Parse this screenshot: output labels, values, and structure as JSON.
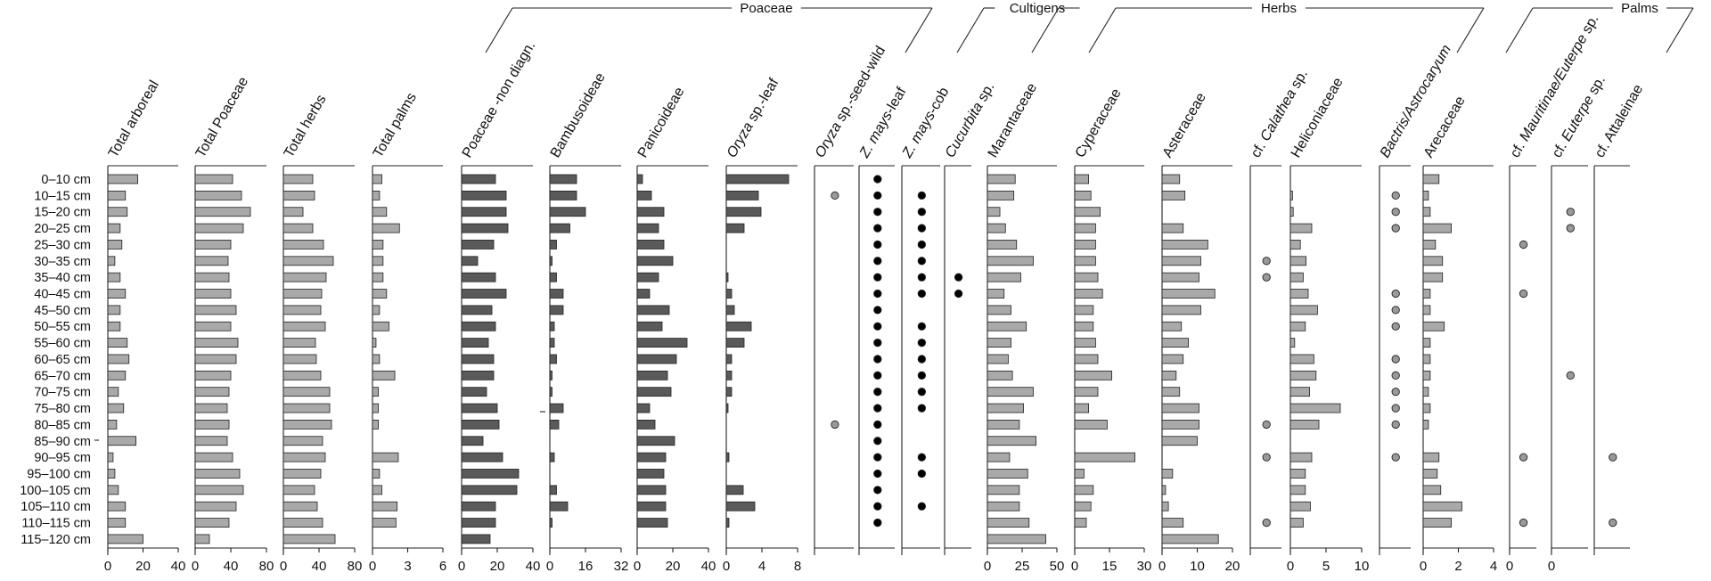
{
  "chart_data": {
    "type": "bar",
    "orientation": "horizontal",
    "depths": [
      "0–10 cm",
      "10–15 cm",
      "15–20 cm",
      "20–25 cm",
      "25–30 cm",
      "30–35 cm",
      "35–40 cm",
      "40–45 cm",
      "45–50 cm",
      "50–55 cm",
      "55–60 cm",
      "60–65 cm",
      "65–70 cm",
      "70–75 cm",
      "75–80 cm",
      "80–85 cm",
      "85–90 cm",
      "90–95 cm",
      "95–100 cm",
      "100–105 cm",
      "105–110 cm",
      "110–115 cm",
      "115–120 cm"
    ],
    "groups": [
      {
        "label": "Poaceae",
        "from": 4,
        "to": 7
      },
      {
        "label": "Cultigens",
        "from": 8,
        "to": 10
      },
      {
        "label": "Herbs",
        "from": 11,
        "to": 16
      },
      {
        "label": "Palms",
        "from": 17,
        "to": 20
      }
    ],
    "panels": [
      {
        "label": "Total arboreal",
        "kind": "bar",
        "color": "#a9a9a9",
        "ticks": [
          "0",
          "20",
          "40"
        ],
        "max": 40,
        "values": [
          17,
          10,
          11,
          7,
          8,
          4,
          7,
          10,
          7,
          7,
          11,
          12,
          10,
          6,
          9,
          5,
          16,
          3,
          4,
          6,
          10,
          10,
          20
        ]
      },
      {
        "label": "Total Poaceae",
        "kind": "bar",
        "color": "#a9a9a9",
        "ticks": [
          "0",
          "40",
          "80"
        ],
        "max": 80,
        "values": [
          42,
          52,
          62,
          54,
          40,
          37,
          38,
          40,
          46,
          40,
          48,
          46,
          40,
          38,
          36,
          38,
          36,
          42,
          50,
          54,
          46,
          38,
          16
        ]
      },
      {
        "label": "Total herbs",
        "kind": "bar",
        "color": "#a9a9a9",
        "ticks": [
          "0",
          "40",
          "80"
        ],
        "max": 80,
        "values": [
          33,
          35,
          22,
          33,
          45,
          56,
          48,
          43,
          42,
          47,
          36,
          37,
          42,
          52,
          52,
          54,
          44,
          47,
          42,
          35,
          38,
          44,
          58
        ]
      },
      {
        "label": "Total palms",
        "kind": "bar",
        "color": "#a9a9a9",
        "ticks": [
          "0",
          "3",
          "6"
        ],
        "max": 6,
        "values": [
          0.8,
          0.6,
          1.2,
          2.3,
          0.9,
          0.9,
          0.9,
          1.2,
          0.6,
          1.4,
          0.3,
          0.6,
          1.9,
          0.5,
          0.5,
          0.5,
          0,
          2.2,
          0.6,
          0.8,
          2.1,
          2.0,
          0
        ]
      },
      {
        "label": "Poaceae -non diagn.",
        "kind": "bar",
        "color": "#5a5a5a",
        "ticks": [
          "0",
          "20",
          "40"
        ],
        "max": 40,
        "values": [
          19,
          25,
          25,
          26,
          18,
          9,
          19,
          25,
          17,
          19,
          15,
          18,
          18,
          14,
          20,
          21,
          12,
          23,
          32,
          31,
          19,
          19,
          16
        ]
      },
      {
        "label": "Bambusoideae",
        "kind": "bar",
        "color": "#5a5a5a",
        "ticks": [
          "0",
          "16",
          "32"
        ],
        "max": 32,
        "values": [
          12,
          12,
          16,
          9,
          3,
          1,
          3,
          6,
          6,
          2,
          2,
          3,
          1,
          1,
          6,
          4,
          0,
          2,
          0,
          3,
          8,
          1,
          0
        ]
      },
      {
        "label": "Panicoideae",
        "kind": "bar",
        "color": "#5a5a5a",
        "ticks": [
          "0",
          "20",
          "40"
        ],
        "max": 40,
        "values": [
          3,
          8,
          15,
          12,
          15,
          20,
          12,
          7,
          18,
          14,
          28,
          22,
          17,
          19,
          7,
          10,
          21,
          16,
          15,
          16,
          16,
          17,
          0
        ]
      },
      {
        "label": "Oryza sp.-leaf",
        "italic": "Oryza",
        "rest": " sp.-leaf",
        "kind": "bar",
        "color": "#5a5a5a",
        "ticks": [
          "0",
          "4",
          "8"
        ],
        "max": 8,
        "values": [
          7.0,
          3.6,
          3.9,
          2.0,
          0,
          0,
          0.2,
          0.6,
          0.9,
          2.8,
          2.0,
          0.6,
          0.6,
          0.6,
          0.2,
          0,
          0,
          0.3,
          0,
          1.9,
          3.2,
          0.3,
          0
        ]
      },
      {
        "label": "Oryza sp.-seed-wild",
        "italic": "Oryza",
        "rest": " sp.-seed-wild",
        "kind": "dot",
        "color": "#999999",
        "values": [
          0,
          1,
          0,
          0,
          0,
          0,
          0,
          0,
          0,
          0,
          0,
          0,
          0,
          0,
          0,
          1,
          0,
          0,
          0,
          0,
          0,
          0,
          0
        ]
      },
      {
        "label": "Z. mays-leaf",
        "italic": "Z. mays",
        "rest": "-leaf",
        "kind": "dot",
        "color": "#000000",
        "values": [
          1,
          1,
          1,
          1,
          1,
          1,
          1,
          1,
          1,
          1,
          1,
          1,
          1,
          1,
          1,
          1,
          1,
          1,
          1,
          1,
          1,
          1,
          0
        ]
      },
      {
        "label": "Z. mays-cob",
        "italic": "Z. mays",
        "rest": "-cob",
        "kind": "dot",
        "color": "#000000",
        "values": [
          0,
          1,
          1,
          1,
          1,
          1,
          1,
          1,
          0,
          1,
          1,
          1,
          1,
          1,
          1,
          0,
          0,
          1,
          1,
          0,
          1,
          0,
          0
        ]
      },
      {
        "label": "Cucurbita sp.",
        "italic": "Cucurbita",
        "rest": " sp.",
        "kind": "dot",
        "color": "#000000",
        "values": [
          0,
          0,
          0,
          0,
          0,
          0,
          1,
          1,
          0,
          0,
          0,
          0,
          0,
          0,
          0,
          0,
          0,
          0,
          0,
          0,
          0,
          0,
          0
        ]
      },
      {
        "label": "Marantaceae",
        "kind": "bar",
        "color": "#a9a9a9",
        "ticks": [
          "0",
          "25",
          "50"
        ],
        "max": 50,
        "values": [
          20,
          19,
          9,
          13,
          21,
          33,
          24,
          12,
          17,
          28,
          17,
          15,
          18,
          33,
          26,
          23,
          35,
          16,
          29,
          23,
          23,
          30,
          42
        ]
      },
      {
        "label": "Cyperaceae",
        "kind": "bar",
        "color": "#a9a9a9",
        "ticks": [
          "0",
          "15",
          "30"
        ],
        "max": 30,
        "values": [
          6,
          7,
          11,
          9,
          9,
          9,
          10,
          12,
          8,
          8,
          9,
          10,
          16,
          10,
          6,
          14,
          0,
          26,
          4,
          8,
          7,
          5,
          0
        ]
      },
      {
        "label": "Asteraceae",
        "kind": "bar",
        "color": "#a9a9a9",
        "ticks": [
          "0",
          "10",
          "20"
        ],
        "max": 20,
        "values": [
          5,
          6.5,
          0,
          6,
          13,
          11,
          10.5,
          15,
          11,
          5.5,
          7.5,
          6,
          4,
          5,
          10.5,
          10.5,
          10,
          0,
          3,
          1,
          1.8,
          6,
          16
        ]
      },
      {
        "label": "cf. Calathea sp.",
        "prefix": "cf. ",
        "italic": "Calathea",
        "rest": " sp.",
        "kind": "dot",
        "color": "#999999",
        "values": [
          0,
          0,
          0,
          0,
          0,
          1,
          1,
          0,
          0,
          0,
          0,
          0,
          0,
          0,
          0,
          1,
          0,
          1,
          0,
          0,
          0,
          1,
          0
        ]
      },
      {
        "label": "Heliconiaceae",
        "kind": "bar",
        "color": "#a9a9a9",
        "ticks": [
          "0",
          "5",
          "10"
        ],
        "max": 10,
        "values": [
          0,
          0.3,
          0.4,
          3,
          1.4,
          2.2,
          1.8,
          2.5,
          3.8,
          2.1,
          0.6,
          3.3,
          3.6,
          2.7,
          7,
          4,
          0,
          3,
          2.1,
          2.1,
          2.8,
          1.8,
          0
        ]
      },
      {
        "label": "Bactris/Astrocaryum",
        "italic": "Bactris/Astrocaryum",
        "rest": "",
        "kind": "dot",
        "color": "#999999",
        "values": [
          0,
          1,
          1,
          1,
          0,
          0,
          0,
          1,
          1,
          1,
          0,
          1,
          1,
          1,
          1,
          1,
          0,
          1,
          0,
          0,
          0,
          0,
          0
        ]
      },
      {
        "label": "Arecaceae",
        "kind": "bar",
        "color": "#a9a9a9",
        "ticks": [
          "0",
          "2",
          "4"
        ],
        "max": 4,
        "values": [
          0.9,
          0.3,
          0.4,
          1.6,
          0.7,
          1.1,
          1.1,
          0.4,
          0.4,
          1.2,
          0.4,
          0.4,
          0.4,
          0.3,
          0.4,
          0.3,
          0,
          0.9,
          0.8,
          1.0,
          2.2,
          1.6,
          0
        ]
      },
      {
        "label": "cf. Mauritinae/Euterpe sp.",
        "prefix": "cf. ",
        "italic": "Mauritinae/Euterpe",
        "rest": " sp.",
        "kind": "dot",
        "color": "#999999",
        "ticks": [
          "0"
        ],
        "values": [
          0,
          0,
          0,
          0,
          1,
          0,
          0,
          1,
          0,
          0,
          0,
          0,
          0,
          0,
          0,
          0,
          0,
          1,
          0,
          0,
          0,
          1,
          0
        ]
      },
      {
        "label": "cf. Euterpe sp.",
        "prefix": "cf. ",
        "italic": "Euterpe",
        "rest": " sp.",
        "kind": "dot",
        "color": "#999999",
        "ticks": [
          "0"
        ],
        "values": [
          0,
          0,
          1,
          1,
          0,
          0,
          0,
          0,
          0,
          0,
          0,
          0,
          1,
          0,
          0,
          0,
          0,
          0,
          0,
          0,
          0,
          0,
          0
        ]
      },
      {
        "label": "cf. Attaleinae",
        "kind": "dot",
        "color": "#999999",
        "values": [
          0,
          0,
          0,
          0,
          0,
          0,
          0,
          0,
          0,
          0,
          0,
          0,
          0,
          0,
          0,
          0,
          0,
          1,
          0,
          0,
          0,
          1,
          0
        ]
      }
    ]
  }
}
